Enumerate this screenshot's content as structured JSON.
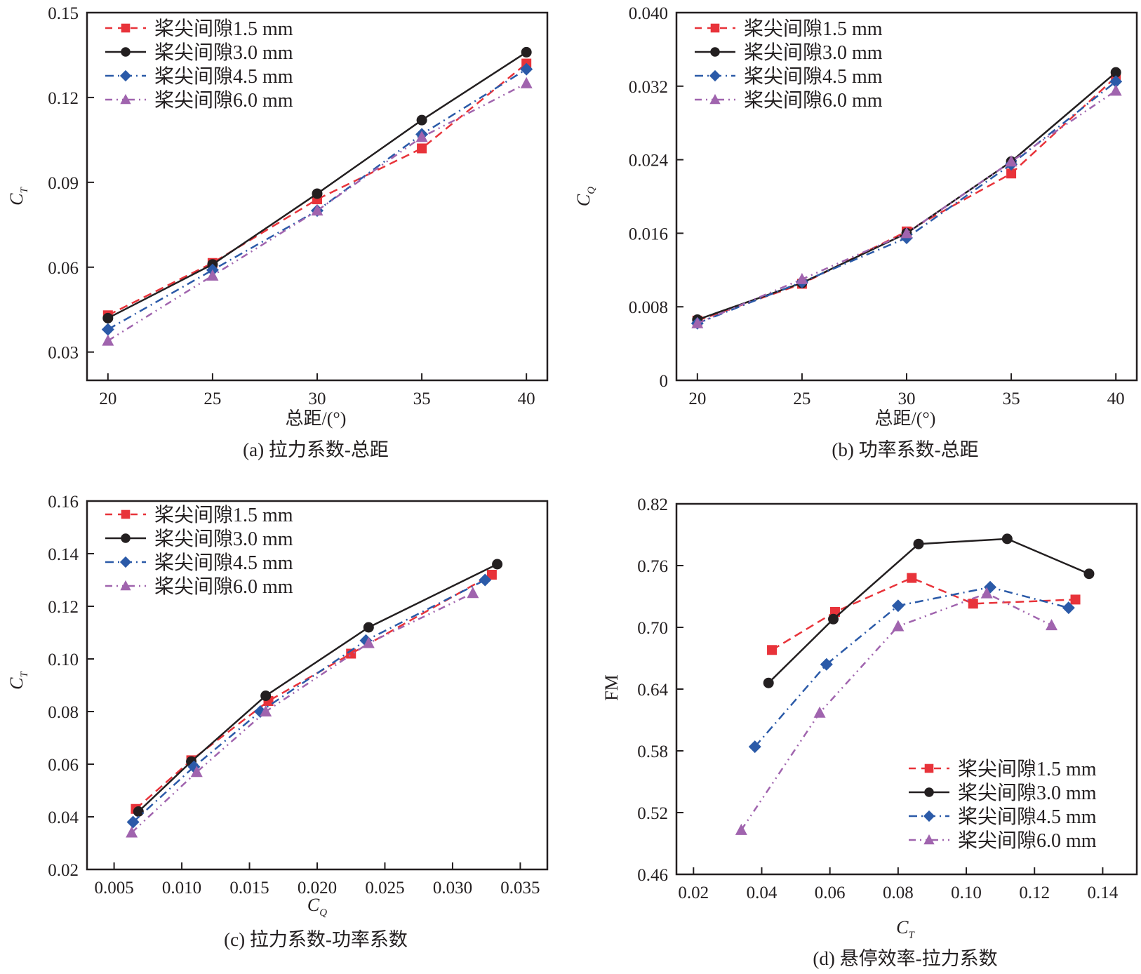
{
  "figure": {
    "legend_entries": [
      "桨尖间隙1.5 mm",
      "桨尖间隙3.0 mm",
      "桨尖间隙4.5 mm",
      "桨尖间隙6.0 mm"
    ],
    "series_styles": [
      {
        "name": "桨尖间隙1.5 mm",
        "color": "#e8333a",
        "marker": "square",
        "dash": "dashed"
      },
      {
        "name": "桨尖间隙3.0 mm",
        "color": "#231f20",
        "marker": "circle",
        "dash": "solid"
      },
      {
        "name": "桨尖间隙4.5 mm",
        "color": "#2b5aa8",
        "marker": "diamond",
        "dash": "dashdot"
      },
      {
        "name": "桨尖间隙6.0 mm",
        "color": "#a064ae",
        "marker": "triangle",
        "dash": "dashdotdot"
      }
    ]
  },
  "chart_data": [
    {
      "id": "a",
      "type": "line",
      "caption": "(a) 拉力系数-总距",
      "xlabel": "总距/(°)",
      "ylabel": "C",
      "ylabel_sub": "T",
      "xlim": [
        19,
        41
      ],
      "ylim": [
        0.02,
        0.15
      ],
      "xticks": [
        20,
        25,
        30,
        35,
        40
      ],
      "xtick_labels": [
        "20",
        "25",
        "30",
        "35",
        "40"
      ],
      "yticks": [
        0.03,
        0.06,
        0.09,
        0.12,
        0.15
      ],
      "ytick_labels": [
        "0.03",
        "0.06",
        "0.09",
        "0.12",
        "0.15"
      ],
      "legend_position": "top-left",
      "grid": false,
      "series": [
        {
          "name": "桨尖间隙1.5 mm",
          "x": [
            20,
            25,
            30,
            35,
            40
          ],
          "y": [
            0.043,
            0.0615,
            0.084,
            0.102,
            0.132
          ]
        },
        {
          "name": "桨尖间隙3.0 mm",
          "x": [
            20,
            25,
            30,
            35,
            40
          ],
          "y": [
            0.042,
            0.061,
            0.086,
            0.112,
            0.136
          ]
        },
        {
          "name": "桨尖间隙4.5 mm",
          "x": [
            20,
            25,
            30,
            35,
            40
          ],
          "y": [
            0.038,
            0.059,
            0.08,
            0.107,
            0.13
          ]
        },
        {
          "name": "桨尖间隙6.0 mm",
          "x": [
            20,
            25,
            30,
            35,
            40
          ],
          "y": [
            0.034,
            0.057,
            0.08,
            0.106,
            0.125
          ]
        }
      ]
    },
    {
      "id": "b",
      "type": "line",
      "caption": "(b) 功率系数-总距",
      "xlabel": "总距/(°)",
      "ylabel": "C",
      "ylabel_sub": "Q",
      "xlim": [
        19,
        41
      ],
      "ylim": [
        0,
        0.04
      ],
      "xticks": [
        20,
        25,
        30,
        35,
        40
      ],
      "xtick_labels": [
        "20",
        "25",
        "30",
        "35",
        "40"
      ],
      "yticks": [
        0,
        0.008,
        0.016,
        0.024,
        0.032,
        0.04
      ],
      "ytick_labels": [
        "0",
        "0.008",
        "0.016",
        "0.024",
        "0.032",
        "0.040"
      ],
      "legend_position": "top-left",
      "grid": false,
      "series": [
        {
          "name": "桨尖间隙1.5 mm",
          "x": [
            20,
            25,
            30,
            35,
            40
          ],
          "y": [
            0.0065,
            0.0105,
            0.0162,
            0.0225,
            0.033
          ]
        },
        {
          "name": "桨尖间隙3.0 mm",
          "x": [
            20,
            25,
            30,
            35,
            40
          ],
          "y": [
            0.0066,
            0.0106,
            0.016,
            0.0238,
            0.0335
          ]
        },
        {
          "name": "桨尖间隙4.5 mm",
          "x": [
            20,
            25,
            30,
            35,
            40
          ],
          "y": [
            0.0062,
            0.0107,
            0.0155,
            0.0235,
            0.0325
          ]
        },
        {
          "name": "桨尖间隙6.0 mm",
          "x": [
            20,
            25,
            30,
            35,
            40
          ],
          "y": [
            0.0062,
            0.011,
            0.016,
            0.0238,
            0.0315
          ]
        }
      ]
    },
    {
      "id": "c",
      "type": "line",
      "caption": "(c) 拉力系数-功率系数",
      "xlabel": "C",
      "xlabel_sub": "Q",
      "ylabel": "C",
      "ylabel_sub": "T",
      "xlim": [
        0.003,
        0.037
      ],
      "ylim": [
        0.02,
        0.16
      ],
      "xticks": [
        0.005,
        0.01,
        0.015,
        0.02,
        0.025,
        0.03,
        0.035
      ],
      "xtick_labels": [
        "0.005",
        "0.010",
        "0.015",
        "0.020",
        "0.025",
        "0.030",
        "0.035"
      ],
      "yticks": [
        0.02,
        0.04,
        0.06,
        0.08,
        0.1,
        0.12,
        0.14,
        0.16
      ],
      "ytick_labels": [
        "0.02",
        "0.04",
        "0.06",
        "0.08",
        "0.10",
        "0.12",
        "0.14",
        "0.16"
      ],
      "legend_position": "top-left",
      "grid": false,
      "series": [
        {
          "name": "桨尖间隙1.5 mm",
          "x": [
            0.0066,
            0.0107,
            0.0164,
            0.0225,
            0.0329
          ],
          "y": [
            0.043,
            0.0615,
            0.084,
            0.102,
            0.132
          ]
        },
        {
          "name": "桨尖间隙3.0 mm",
          "x": [
            0.0068,
            0.0107,
            0.0162,
            0.0238,
            0.0333
          ],
          "y": [
            0.042,
            0.061,
            0.086,
            0.112,
            0.136
          ]
        },
        {
          "name": "桨尖间隙4.5 mm",
          "x": [
            0.0064,
            0.0109,
            0.0158,
            0.0236,
            0.0324
          ],
          "y": [
            0.038,
            0.059,
            0.08,
            0.107,
            0.13
          ]
        },
        {
          "name": "桨尖间隙6.0 mm",
          "x": [
            0.0063,
            0.0111,
            0.0162,
            0.0238,
            0.0315
          ],
          "y": [
            0.034,
            0.057,
            0.08,
            0.106,
            0.125
          ]
        }
      ]
    },
    {
      "id": "d",
      "type": "line",
      "caption": "(d) 悬停效率-拉力系数",
      "xlabel": "C",
      "xlabel_sub": "T",
      "ylabel": "FM",
      "xlim": [
        0.015,
        0.15
      ],
      "ylim": [
        0.46,
        0.82
      ],
      "xticks": [
        0.02,
        0.04,
        0.06,
        0.08,
        0.1,
        0.12,
        0.14
      ],
      "xtick_labels": [
        "0.02",
        "0.04",
        "0.06",
        "0.08",
        "0.10",
        "0.12",
        "0.14"
      ],
      "yticks": [
        0.46,
        0.52,
        0.58,
        0.64,
        0.7,
        0.76,
        0.82
      ],
      "ytick_labels": [
        "0.46",
        "0.52",
        "0.58",
        "0.64",
        "0.70",
        "0.76",
        "0.82"
      ],
      "legend_position": "bottom-right",
      "grid": false,
      "series": [
        {
          "name": "桨尖间隙1.5 mm",
          "x": [
            0.043,
            0.0615,
            0.084,
            0.102,
            0.132
          ],
          "y": [
            0.678,
            0.715,
            0.748,
            0.723,
            0.727
          ]
        },
        {
          "name": "桨尖间隙3.0 mm",
          "x": [
            0.042,
            0.061,
            0.086,
            0.112,
            0.136
          ],
          "y": [
            0.646,
            0.708,
            0.781,
            0.786,
            0.752
          ]
        },
        {
          "name": "桨尖间隙4.5 mm",
          "x": [
            0.038,
            0.059,
            0.08,
            0.107,
            0.13
          ],
          "y": [
            0.584,
            0.664,
            0.721,
            0.739,
            0.719
          ]
        },
        {
          "name": "桨尖间隙6.0 mm",
          "x": [
            0.034,
            0.057,
            0.08,
            0.106,
            0.125
          ],
          "y": [
            0.503,
            0.617,
            0.701,
            0.733,
            0.702
          ]
        }
      ]
    }
  ]
}
